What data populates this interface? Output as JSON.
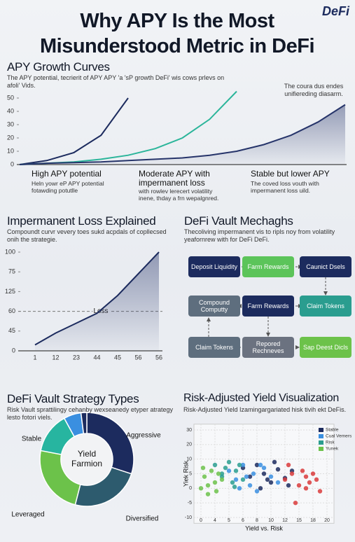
{
  "header": {
    "title": "Why APY Is the Most Misunderstood Metric in DeFi",
    "brand": "DeFi"
  },
  "chart_data": [
    {
      "type": "line",
      "title": "APY Growth Curves",
      "subtitle": "The APY potential, tecrierit of APY APY 'a 'sP growth DeFi' wis cows prlevs on afoli' Vids.",
      "note": "The coura dus endes unifiereding diasarm.",
      "categories": [
        null,
        null,
        null,
        null,
        null,
        null,
        null,
        null,
        null,
        null,
        null,
        null,
        null
      ],
      "series": [
        {
          "color": "#1c2b5e",
          "values": [
            0,
            3,
            9,
            22,
            50,
            null,
            null,
            null,
            null,
            null,
            null,
            null,
            null
          ]
        },
        {
          "color": "#2bb59a",
          "values": [
            0,
            1,
            2,
            4,
            7,
            12,
            20,
            34,
            55,
            null,
            null,
            null,
            null
          ]
        },
        {
          "color": "#26346a",
          "area": true,
          "values": [
            0,
            1,
            1.5,
            2,
            3,
            4,
            5,
            7,
            10,
            15,
            22,
            32,
            45
          ]
        }
      ],
      "ylim": [
        0,
        55
      ],
      "yticks": [
        0,
        10,
        20,
        30,
        40,
        50
      ],
      "annotations": [
        {
          "label": "High APY potential",
          "text": "Heln yowr eP APY potential fotawding potutlle"
        },
        {
          "label": "Moderate APY with impermanent loss",
          "text": "with rowlev lerecert volatility inene, thday a frn wepalgnred."
        },
        {
          "label": "Stable but lower APY",
          "text": "The coved loss vouth with impermanent loss uild."
        }
      ]
    },
    {
      "type": "line",
      "title": "Impermanent Loss Explained",
      "subtitle": "Compoundt curvr vevery toes sukd acpdals of copllecsed onih the strategie.",
      "categories": [
        "1",
        "12",
        "23",
        "44",
        "45",
        "56",
        "56"
      ],
      "series": [
        {
          "color": "#1c2b5e",
          "area": true,
          "values": [
            6,
            18,
            28,
            38,
            56,
            78,
            100
          ]
        }
      ],
      "ylim": [
        0,
        100
      ],
      "yticks": [
        0,
        {
          "value": 20,
          "label": "45"
        },
        {
          "value": 40,
          "label": "60"
        },
        {
          "value": 60,
          "label": "125"
        },
        {
          "value": 80,
          "label": "75"
        },
        100
      ],
      "reference": {
        "value": 40,
        "label": "Loss"
      }
    },
    {
      "type": "pie",
      "title": "DeFi Vault Strategy Types",
      "subtitle": "Risk Vault sprattilingy cehanby wexseanedy etyper atrategy lesto fotori viels.",
      "center_label": "Yield Farmion",
      "categories": [
        "Aggressive",
        "Diversified",
        "Leveraged",
        "Stable",
        null,
        null
      ],
      "values": [
        30,
        24,
        24,
        14,
        6,
        2
      ],
      "colors": [
        "#1c2b5e",
        "#2d5b6e",
        "#6cc24a",
        "#27b5a0",
        "#3a8fe0",
        "#1c2b5e"
      ]
    },
    {
      "type": "scatter",
      "title": "Risk-Adjusted Yield Visualization",
      "subtitle": "Risk-Adjusted Yield Izamingargariated hisk tivih ekt DeFis.",
      "x_label": "Yield vs. Risk",
      "y_label": "Yiek Risk",
      "xlim": [
        -1,
        19
      ],
      "xticks": [
        0,
        {
          "value": 2,
          "label": "4"
        },
        {
          "value": 4,
          "label": "5"
        },
        6,
        8,
        10,
        12,
        {
          "value": 14,
          "label": "15"
        },
        {
          "value": 16,
          "label": "18"
        },
        {
          "value": 18,
          "label": "20"
        }
      ],
      "ylim": [
        -34,
        34
      ],
      "yticks": [
        30,
        20,
        10,
        {
          "value": 0,
          "label": "5"
        },
        {
          "value": -10,
          "label": "0"
        },
        {
          "value": -20,
          "label": "-5"
        },
        {
          "value": -30,
          "label": "-10"
        }
      ],
      "series": [
        {
          "name": "Stable",
          "color": "#1c2b5e",
          "x": [
            6,
            7,
            8,
            9,
            10,
            11,
            12,
            13,
            8.5,
            10.5,
            12.5,
            9.5
          ],
          "values": [
            4,
            -2,
            6,
            0,
            -6,
            3,
            -3,
            2,
            -10,
            8,
            -8,
            -4
          ]
        },
        {
          "name": "Cual Vemers",
          "color": "#3a8fe0",
          "x": [
            4,
            5,
            6,
            7,
            7.5,
            8,
            9,
            10,
            11,
            5.5,
            6.5,
            8.5
          ],
          "values": [
            2,
            -4,
            6,
            -8,
            0,
            -12,
            4,
            -2,
            -6,
            -10,
            -2,
            6
          ]
        },
        {
          "name": "Risk",
          "color": "#2a9d8f",
          "x": [
            2,
            3,
            3.5,
            4,
            4.5,
            5,
            5.5,
            6,
            3,
            4.8
          ],
          "values": [
            6,
            -2,
            4,
            8,
            -6,
            2,
            6,
            -4,
            0,
            -9
          ]
        },
        {
          "name": "Yunek",
          "color": "#6cc24a",
          "x": [
            0,
            0.5,
            1,
            1.5,
            2,
            2.5,
            3,
            1,
            0.3,
            2.2
          ],
          "values": [
            -10,
            -2,
            -14,
            2,
            -6,
            0,
            -4,
            -8,
            4,
            -12
          ]
        },
        {
          "color": "#d93b3b",
          "x": [
            12,
            13,
            14,
            14.5,
            15,
            15.5,
            16,
            16.5,
            17,
            13.5,
            15,
            12.5
          ],
          "values": [
            -4,
            0,
            -8,
            2,
            -2,
            -6,
            0,
            -4,
            -12,
            -20,
            -10,
            6
          ]
        }
      ]
    }
  ],
  "diagram": {
    "title": "DeFi Vault Mechaghs",
    "subtitle": "Thecoliving impermanent vis to ripls noy from volatility yeafornrew with for DeFi DeFi.",
    "nodes": [
      {
        "label": "Deposit Liquidity",
        "color": "#1c2b5e"
      },
      {
        "label": "Farm Rewards",
        "color": "#5cc45a"
      },
      {
        "label": "Caunict Dsels",
        "color": "#1c2b5e"
      },
      {
        "label": "Compound Computty",
        "color": "#5e6e7e"
      },
      {
        "label": "Farm Rewards",
        "color": "#1c2b5e"
      },
      {
        "label": "Claim Tokens",
        "color": "#2a9d8f"
      },
      {
        "label": "Claim Tokens",
        "color": "#5e6e7e"
      },
      {
        "label": "Repored Rechneves",
        "color": "#6b7280"
      },
      {
        "label": "Sap Deest Dicls",
        "color": "#6cc24a"
      }
    ]
  }
}
